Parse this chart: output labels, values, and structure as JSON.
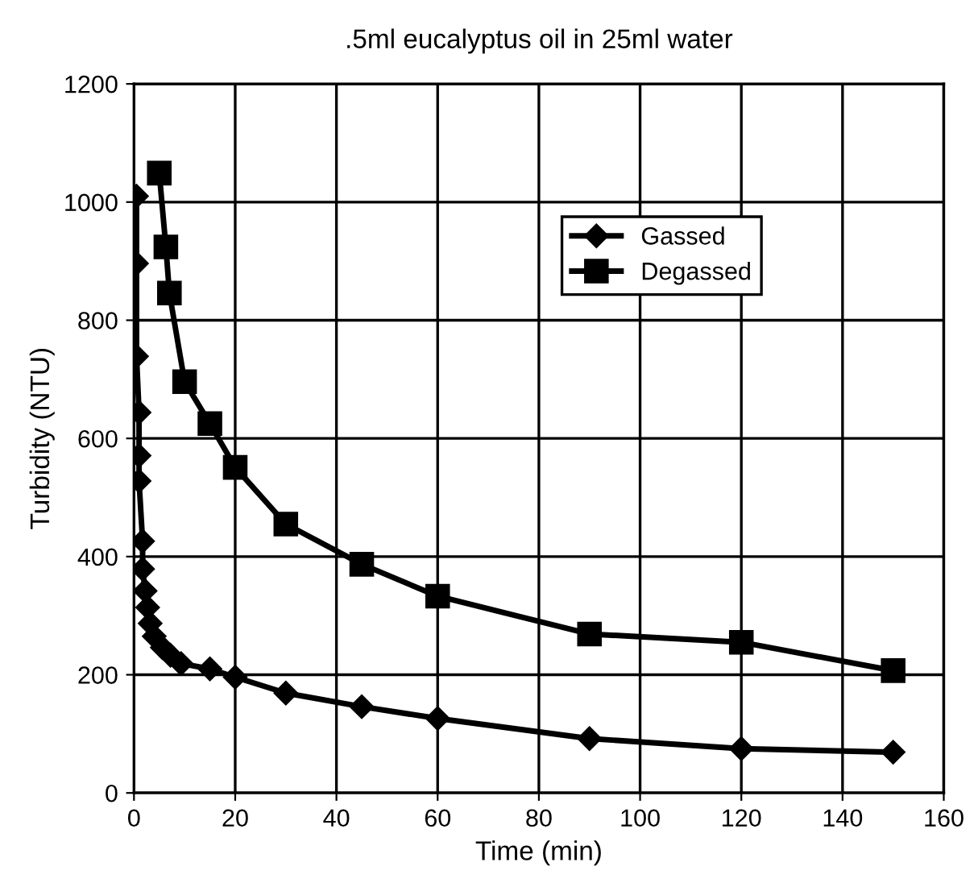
{
  "chart_data": {
    "type": "line",
    "title": ".5ml eucalyptus oil in 25ml water",
    "xlabel": "Time (min)",
    "ylabel": "Turbidity (NTU)",
    "xlim": [
      0,
      160
    ],
    "xticks": [
      0,
      20,
      40,
      60,
      80,
      100,
      120,
      140,
      160
    ],
    "ylim": [
      0,
      1200
    ],
    "yticks": [
      0,
      200,
      400,
      600,
      800,
      1000,
      1200
    ],
    "grid": true,
    "legend": "top right",
    "series": [
      {
        "name": "Gassed",
        "color": "#000000",
        "marker": "diamond",
        "x": [
          0.5,
          0.5,
          0.5,
          1,
          1,
          1,
          1.7,
          1.7,
          2.2,
          2.7,
          3.2,
          4,
          5.6,
          7.2,
          9.3,
          15,
          20,
          30,
          45,
          60,
          90,
          120,
          150
        ],
        "values": [
          1010,
          896,
          739,
          644,
          571,
          528,
          426,
          379,
          342,
          314,
          287,
          265,
          246,
          233,
          219,
          210,
          196,
          169,
          146,
          126,
          92,
          75,
          69
        ]
      },
      {
        "name": "Degassed",
        "color": "#000000",
        "marker": "square",
        "x": [
          5,
          6.3,
          7,
          10,
          15,
          20,
          30,
          45,
          60,
          90,
          120,
          150
        ],
        "values": [
          1049,
          924,
          846,
          696,
          625,
          551,
          455,
          387,
          333,
          269,
          255,
          207
        ]
      }
    ]
  }
}
